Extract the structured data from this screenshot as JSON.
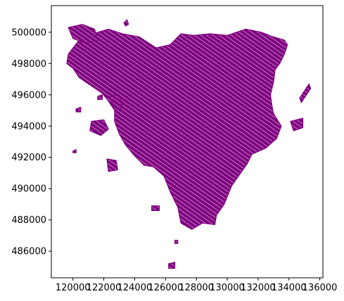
{
  "chart_data": {
    "type": "map",
    "title": "",
    "xlabel": "",
    "ylabel": "",
    "xlim": [
      118600,
      136200
    ],
    "ylim": [
      484300,
      501700
    ],
    "x_ticks": [
      {
        "value": 120000,
        "label": "120000"
      },
      {
        "value": 122000,
        "label": "122000"
      },
      {
        "value": 124000,
        "label": "124000"
      },
      {
        "value": 126000,
        "label": "126000"
      },
      {
        "value": 128000,
        "label": "128000"
      },
      {
        "value": 130000,
        "label": "130000"
      },
      {
        "value": 132000,
        "label": "132000"
      },
      {
        "value": 134000,
        "label": "134000"
      },
      {
        "value": 136000,
        "label": "136000"
      }
    ],
    "y_ticks": [
      {
        "value": 486000,
        "label": "486000"
      },
      {
        "value": 488000,
        "label": "488000"
      },
      {
        "value": 490000,
        "label": "490000"
      },
      {
        "value": 492000,
        "label": "492000"
      },
      {
        "value": 494000,
        "label": "494000"
      },
      {
        "value": 496000,
        "label": "496000"
      },
      {
        "value": 498000,
        "label": "498000"
      },
      {
        "value": 500000,
        "label": "500000"
      }
    ],
    "grid": false,
    "fill_color": "#800080",
    "edge_color": "#800080",
    "regions": [
      {
        "name": "main-parcels",
        "outline": [
          [
            119700,
            498600
          ],
          [
            120400,
            499500
          ],
          [
            121300,
            499900
          ],
          [
            122300,
            500200
          ],
          [
            123200,
            499900
          ],
          [
            124300,
            499700
          ],
          [
            125400,
            499000
          ],
          [
            126300,
            499200
          ],
          [
            127000,
            499900
          ],
          [
            127800,
            499800
          ],
          [
            128900,
            499900
          ],
          [
            130000,
            499800
          ],
          [
            131200,
            500200
          ],
          [
            132200,
            500000
          ],
          [
            133000,
            499700
          ],
          [
            133700,
            499500
          ],
          [
            133900,
            499200
          ],
          [
            133700,
            498600
          ],
          [
            133400,
            498000
          ],
          [
            133100,
            497600
          ],
          [
            133000,
            496800
          ],
          [
            132800,
            496000
          ],
          [
            132900,
            495300
          ],
          [
            133000,
            494800
          ],
          [
            133500,
            494000
          ],
          [
            133200,
            493200
          ],
          [
            132500,
            492600
          ],
          [
            131600,
            492200
          ],
          [
            131300,
            491600
          ],
          [
            130800,
            490900
          ],
          [
            130300,
            490200
          ],
          [
            129800,
            489000
          ],
          [
            129300,
            488300
          ],
          [
            129200,
            487700
          ],
          [
            128400,
            487800
          ],
          [
            127700,
            487400
          ],
          [
            127000,
            487800
          ],
          [
            126800,
            488800
          ],
          [
            126300,
            489800
          ],
          [
            125900,
            490800
          ],
          [
            125200,
            491400
          ],
          [
            124600,
            491500
          ],
          [
            123900,
            492200
          ],
          [
            123400,
            492800
          ],
          [
            123000,
            493500
          ],
          [
            122700,
            494300
          ],
          [
            122700,
            495000
          ],
          [
            122300,
            495600
          ],
          [
            121900,
            496100
          ],
          [
            121000,
            496700
          ],
          [
            120400,
            497100
          ],
          [
            120000,
            497700
          ],
          [
            119600,
            498000
          ]
        ]
      },
      {
        "name": "north-west-block",
        "outline": [
          [
            119700,
            500300
          ],
          [
            120600,
            500500
          ],
          [
            121400,
            500200
          ],
          [
            121600,
            499500
          ],
          [
            120800,
            499300
          ],
          [
            120000,
            499600
          ]
        ]
      },
      {
        "name": "east-strip",
        "outline": [
          [
            134700,
            495800
          ],
          [
            135300,
            496700
          ],
          [
            135400,
            496400
          ],
          [
            134800,
            495500
          ]
        ]
      },
      {
        "name": "west-island-1",
        "outline": [
          [
            121200,
            494300
          ],
          [
            122000,
            494400
          ],
          [
            122300,
            493800
          ],
          [
            121800,
            493400
          ],
          [
            121100,
            493700
          ]
        ]
      },
      {
        "name": "west-island-2",
        "outline": [
          [
            122400,
            495900
          ],
          [
            123000,
            496000
          ],
          [
            123200,
            495200
          ],
          [
            122700,
            495000
          ]
        ]
      },
      {
        "name": "south-west-island",
        "outline": [
          [
            122200,
            491900
          ],
          [
            122800,
            491800
          ],
          [
            122900,
            491200
          ],
          [
            122300,
            491100
          ]
        ]
      },
      {
        "name": "east-ring",
        "outline": [
          [
            134100,
            494300
          ],
          [
            134900,
            494500
          ],
          [
            134900,
            493900
          ],
          [
            134300,
            493700
          ]
        ]
      },
      {
        "name": "south-fragment-1",
        "outline": [
          [
            125100,
            488900
          ],
          [
            125600,
            488900
          ],
          [
            125600,
            488600
          ],
          [
            125100,
            488600
          ]
        ]
      },
      {
        "name": "south-fragment-2",
        "outline": [
          [
            126200,
            485200
          ],
          [
            126600,
            485300
          ],
          [
            126600,
            484900
          ],
          [
            126200,
            484900
          ]
        ]
      },
      {
        "name": "south-fragment-3",
        "outline": [
          [
            126600,
            486700
          ],
          [
            126800,
            486700
          ],
          [
            126800,
            486500
          ],
          [
            126600,
            486500
          ]
        ]
      },
      {
        "name": "north-tip",
        "outline": [
          [
            123300,
            500600
          ],
          [
            123500,
            500800
          ],
          [
            123600,
            500500
          ],
          [
            123400,
            500400
          ]
        ]
      },
      {
        "name": "west-dot",
        "outline": [
          [
            120000,
            492400
          ],
          [
            120200,
            492500
          ],
          [
            120200,
            492300
          ],
          [
            120000,
            492300
          ]
        ]
      },
      {
        "name": "west-small-1",
        "outline": [
          [
            121600,
            495900
          ],
          [
            121900,
            496000
          ],
          [
            121900,
            495700
          ],
          [
            121600,
            495700
          ]
        ]
      },
      {
        "name": "west-small-2",
        "outline": [
          [
            120200,
            495100
          ],
          [
            120500,
            495200
          ],
          [
            120500,
            494900
          ],
          [
            120200,
            494900
          ]
        ]
      }
    ]
  }
}
